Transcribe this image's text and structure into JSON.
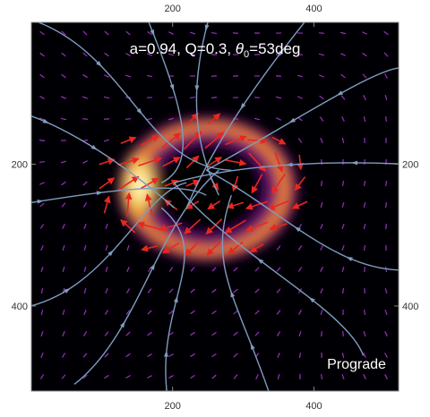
{
  "chart_data": {
    "type": "heatmap",
    "title": {
      "prefix": "a=0.94, Q=0.3, ",
      "symbol": "θ",
      "subscript": "0",
      "suffix": "=53deg"
    },
    "annotation": "Prograde",
    "xlabel": "",
    "ylabel": "",
    "xlim": [
      0,
      520
    ],
    "ylim": [
      0,
      520
    ],
    "y_inverted": true,
    "x_ticks": [
      200,
      400
    ],
    "y_ticks": [
      200,
      400
    ],
    "frame_ticks_all_sides": true,
    "colormap": "inferno",
    "ring": {
      "center": [
        240,
        235
      ],
      "radius_x": 105,
      "radius_y": 70,
      "bright_side": "left"
    },
    "vector_field": {
      "inner_color": "#e8271f",
      "outer_color": "#9b2ec4"
    },
    "streamlines": {
      "color": "#7f9cc0",
      "count": 14
    }
  }
}
